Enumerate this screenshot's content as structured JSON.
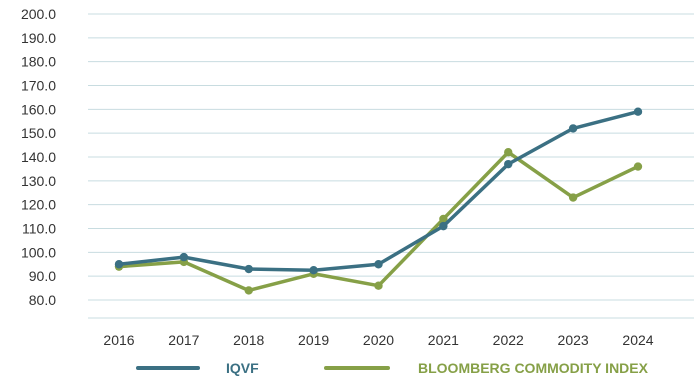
{
  "chart_data": {
    "type": "line",
    "title": "",
    "xlabel": "",
    "ylabel": "",
    "categories": [
      "2016",
      "2017",
      "2018",
      "2019",
      "2020",
      "2021",
      "2022",
      "2023",
      "2024"
    ],
    "yticks": [
      "80.0",
      "90.0",
      "100.0",
      "110.0",
      "120.0",
      "130.0",
      "140.0",
      "150.0",
      "160.0",
      "170.0",
      "180.0",
      "190.0",
      "200.0"
    ],
    "ylim": [
      80,
      200
    ],
    "grid": true,
    "legend_position": "bottom",
    "series": [
      {
        "name": "IQVF",
        "color": "#3b7083",
        "values": [
          95,
          98,
          93,
          92.5,
          95,
          111,
          137,
          152,
          159
        ]
      },
      {
        "name": "BLOOMBERG COMMODITY INDEX",
        "color": "#86a047",
        "values": [
          94,
          96,
          84,
          91,
          86,
          114,
          142,
          123,
          136
        ]
      }
    ]
  }
}
